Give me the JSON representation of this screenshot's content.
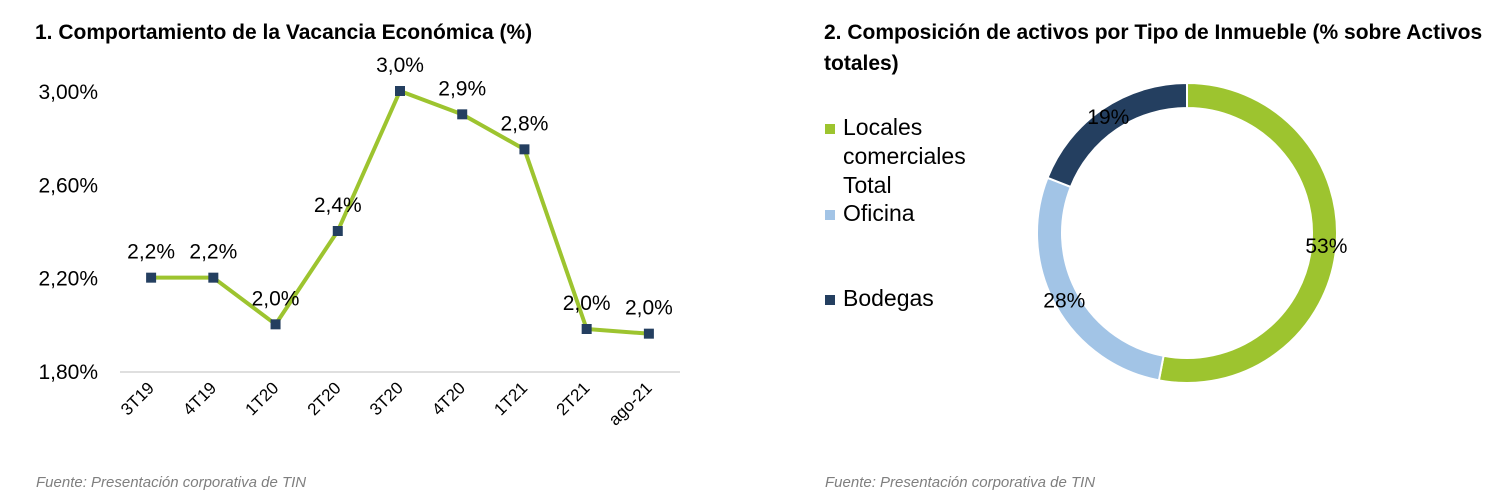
{
  "left_panel": {
    "title": "1. Comportamiento de la Vacancia Económica (%)",
    "source": "Fuente: Presentación corporativa de TIN"
  },
  "right_panel": {
    "title": "2. Composición de activos por Tipo de Inmueble (% sobre Activos totales)",
    "source": "Fuente: Presentación corporativa de TIN"
  },
  "chart_data": [
    {
      "type": "line",
      "categories": [
        "3T19",
        "4T19",
        "1T20",
        "2T20",
        "3T20",
        "4T20",
        "1T21",
        "2T21",
        "ago-21"
      ],
      "values": [
        2.2,
        2.2,
        2.0,
        2.4,
        3.0,
        2.9,
        2.75,
        1.98,
        1.96
      ],
      "data_labels": [
        "2,2%",
        "2,2%",
        "2,0%",
        "2,4%",
        "3,0%",
        "2,9%",
        "2,8%",
        "2,0%",
        "2,0%"
      ],
      "y_ticks": [
        "1,80%",
        "2,20%",
        "2,60%",
        "3,00%"
      ],
      "y_tick_values": [
        1.8,
        2.2,
        2.6,
        3.0
      ],
      "ylim": [
        1.8,
        3.0
      ],
      "grid": false,
      "line_color": "#9dc42f",
      "marker_color": "#243f60"
    },
    {
      "type": "pie",
      "style": "donut",
      "legend_position": "left",
      "slices": [
        {
          "label": "Locales comerciales Total",
          "value": 53,
          "display": "53%",
          "color": "#9dc42f"
        },
        {
          "label": "Oficina",
          "value": 28,
          "display": "28%",
          "color": "#a2c4e6"
        },
        {
          "label": "Bodegas",
          "value": 19,
          "display": "19%",
          "color": "#243f60"
        }
      ],
      "legend_lines": [
        [
          "Locales",
          "comerciales",
          "Total"
        ],
        [
          "Oficina"
        ],
        [
          "Bodegas"
        ]
      ]
    }
  ]
}
